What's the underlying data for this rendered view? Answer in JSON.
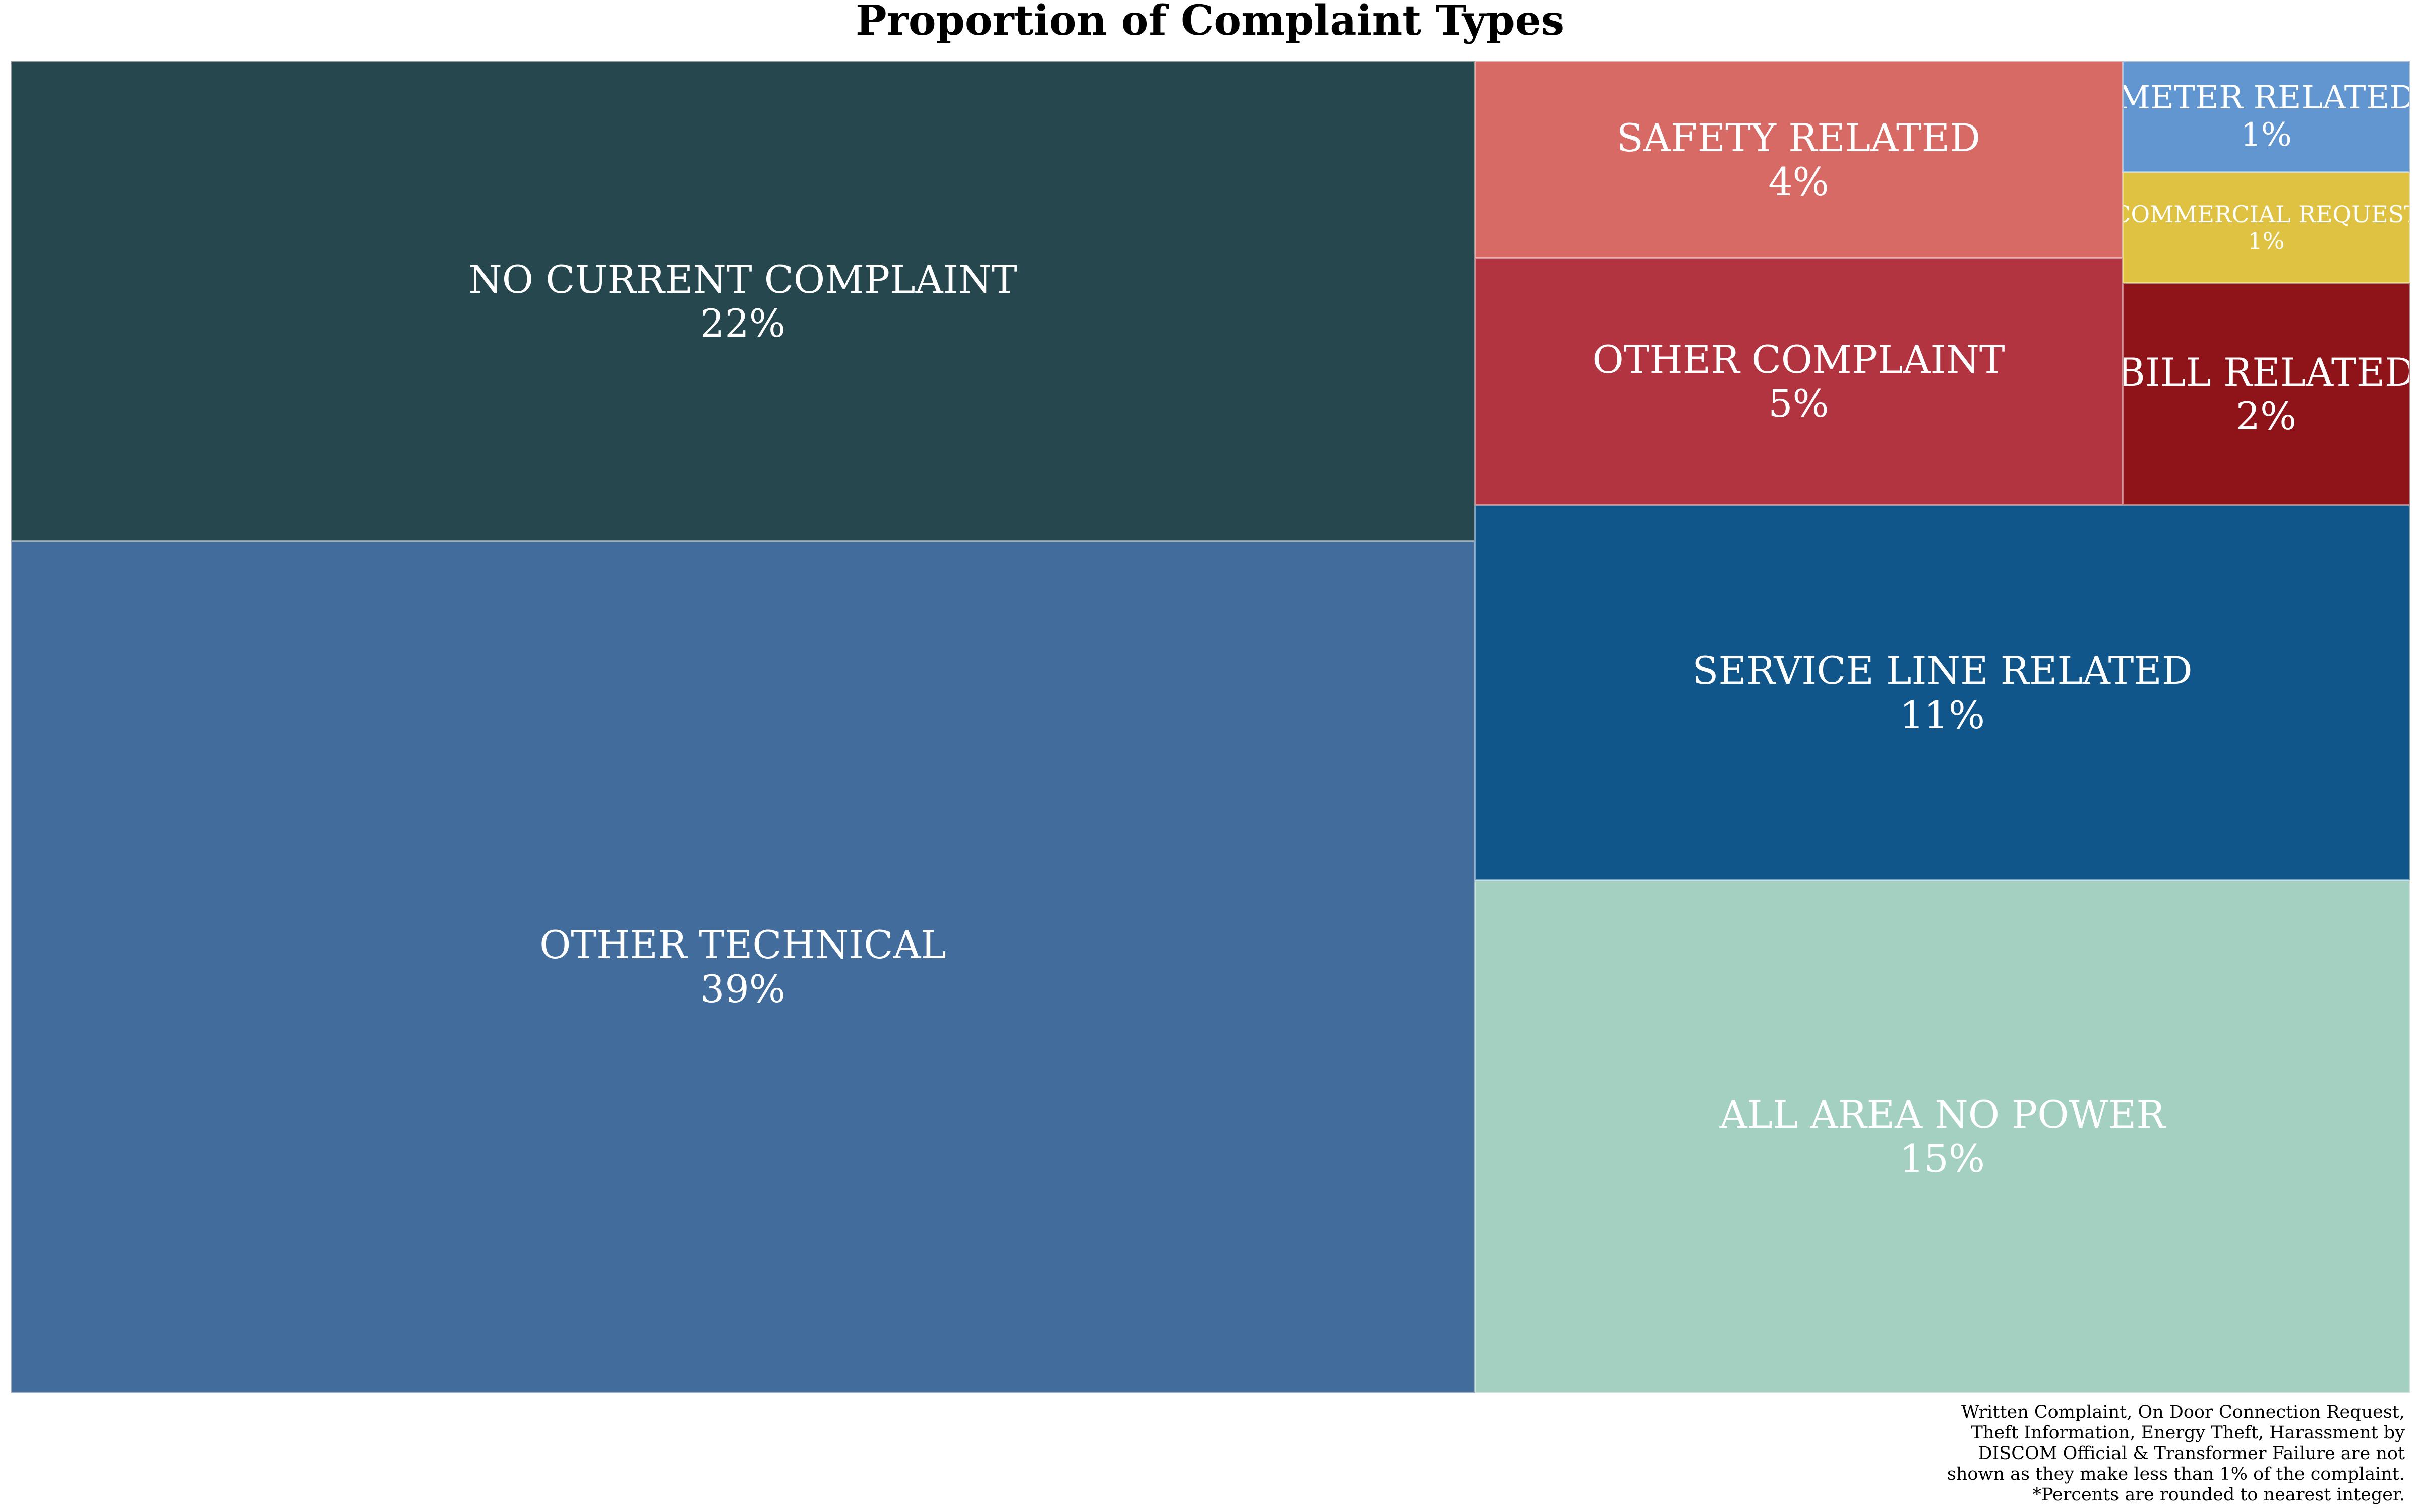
{
  "chart_data": {
    "type": "treemap",
    "title": "Proportion of Complaint Types",
    "label_color": "#ffffff",
    "items": [
      {
        "name": "NO CURRENT COMPLAINT",
        "value": 22,
        "label": "22%",
        "color": "#27474f"
      },
      {
        "name": "OTHER TECHNICAL",
        "value": 39,
        "label": "39%",
        "color": "#416c9c"
      },
      {
        "name": "SAFETY RELATED",
        "value": 4,
        "label": "4%",
        "color": "#d86a66"
      },
      {
        "name": "OTHER COMPLAINT",
        "value": 5,
        "label": "5%",
        "color": "#b23440"
      },
      {
        "name": "METER RELATED",
        "value": 1,
        "label": "1%",
        "color": "#6296d1"
      },
      {
        "name": "COMMERCIAL REQUEST",
        "value": 1,
        "label": "1%",
        "color": "#dfc242"
      },
      {
        "name": "BILL RELATED",
        "value": 2,
        "label": "2%",
        "color": "#8f141a"
      },
      {
        "name": "SERVICE LINE RELATED",
        "value": 11,
        "label": "11%",
        "color": "#10568a"
      },
      {
        "name": "ALL AREA NO POWER",
        "value": 15,
        "label": "15%",
        "color": "#a3d0c0"
      }
    ],
    "footnote": [
      "Written Complaint, On Door Connection Request,",
      "Theft Information, Energy Theft, Harassment by",
      "DISCOM Official & Transformer Failure are not",
      "shown as they make less than 1% of the complaint.",
      "*Percents are rounded to nearest integer."
    ]
  }
}
